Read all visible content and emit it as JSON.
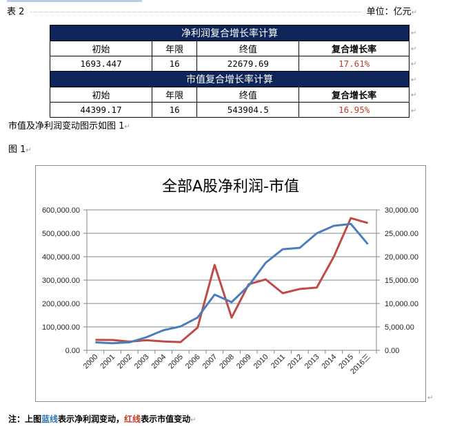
{
  "header": {
    "table_label": "表 2",
    "unit": "单位：亿元"
  },
  "tables": [
    {
      "title": "净利润复合增长率计算",
      "columns": [
        "初始",
        "年限",
        "终值",
        "复合增长率"
      ],
      "values": [
        "1693.447",
        "16",
        "22679.69",
        "17.61%"
      ]
    },
    {
      "title": "市值复合增长率计算",
      "columns": [
        "初始",
        "年限",
        "终值",
        "复合增长率"
      ],
      "values": [
        "44399.17",
        "16",
        "543904.5",
        "16.95%"
      ]
    }
  ],
  "paragraphs": {
    "intro": "市值及净利润变动图示如图 1",
    "figure_label": "图 1"
  },
  "note": {
    "prefix": "注：上图",
    "blue_text": "蓝线",
    "mid": "表示净利润变动，",
    "red_text": "红线",
    "suffix": "表示市值变动"
  },
  "colors": {
    "header_bg": "#0e2559",
    "blue_line": "#4a7ebb",
    "red_line": "#be4b48",
    "rate_text": "#c0392b"
  },
  "chart_data": {
    "type": "line",
    "title": "全部A股净利润-市值",
    "categories": [
      "2000",
      "2001",
      "2002",
      "2003",
      "2004",
      "2005",
      "2006",
      "2007",
      "2008",
      "2009",
      "2010",
      "2011",
      "2012",
      "2013",
      "2014",
      "2015",
      "2016三"
    ],
    "series": [
      {
        "name": "市值",
        "color": "#be4b48",
        "axis": "left",
        "values": [
          44399,
          44000,
          37000,
          43000,
          38000,
          35000,
          97000,
          365000,
          140000,
          282000,
          303000,
          244000,
          262000,
          268000,
          400000,
          565000,
          543904
        ]
      },
      {
        "name": "净利润",
        "color": "#4a7ebb",
        "axis": "right",
        "values": [
          1693,
          1500,
          1700,
          2800,
          4300,
          5100,
          7000,
          11900,
          10300,
          13800,
          18700,
          21600,
          21900,
          25000,
          26600,
          27000,
          22680
        ]
      }
    ],
    "left_axis": {
      "ticks": [
        "0.00",
        "100,000.00",
        "200,000.00",
        "300,000.00",
        "400,000.00",
        "500,000.00",
        "600,000.00"
      ],
      "ylim": [
        0,
        600000
      ]
    },
    "right_axis": {
      "ticks": [
        "0.00",
        "5,000.00",
        "10,000.00",
        "15,000.00",
        "20,000.00",
        "25,000.00",
        "30,000.00"
      ],
      "ylim": [
        0,
        30000
      ]
    },
    "grid": true,
    "legend": "none",
    "xlabel": "",
    "ylabel": ""
  }
}
